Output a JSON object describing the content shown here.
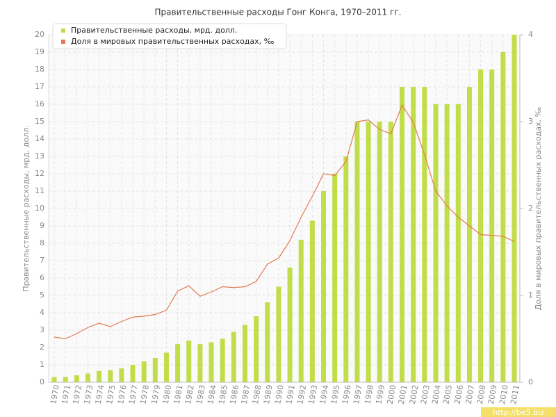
{
  "chart_data": {
    "type": "bar_line",
    "title": "Правительственные расходы Гонг Конга, 1970–2011 гг.",
    "y_label": "Правительственные расходы, мрд. долл.",
    "y2_label": "Доля в мировых правительственных расходах, ‰",
    "watermark": "http://be5.biz",
    "categories": [
      "1970",
      "1971",
      "1972",
      "1973",
      "1974",
      "1975",
      "1976",
      "1977",
      "1978",
      "1979",
      "1980",
      "1981",
      "1982",
      "1983",
      "1984",
      "1985",
      "1986",
      "1987",
      "1988",
      "1989",
      "1990",
      "1991",
      "1992",
      "1993",
      "1994",
      "1995",
      "1996",
      "1997",
      "1998",
      "1999",
      "2000",
      "2001",
      "2002",
      "2003",
      "2004",
      "2005",
      "2006",
      "2007",
      "2008",
      "2009",
      "2010",
      "2011"
    ],
    "series": [
      {
        "name": "Правительственные расходы, мрд. долл.",
        "color": "#c2dd4a",
        "kind": "bar",
        "values": [
          0.3,
          0.3,
          0.4,
          0.5,
          0.65,
          0.7,
          0.8,
          1.0,
          1.2,
          1.4,
          1.7,
          2.2,
          2.4,
          2.2,
          2.3,
          2.5,
          2.9,
          3.3,
          3.8,
          4.6,
          5.5,
          6.6,
          8.2,
          9.3,
          11,
          12,
          13,
          15,
          15,
          15,
          15,
          17,
          17,
          17,
          16,
          16,
          16,
          17,
          18,
          18,
          19,
          20
        ]
      },
      {
        "name": "Доля в мировых правительственных расходах, ‰",
        "color": "#e07a50",
        "kind": "line",
        "axis": "y2",
        "values": [
          0.52,
          0.5,
          0.56,
          0.63,
          0.68,
          0.64,
          0.7,
          0.75,
          0.76,
          0.78,
          0.83,
          1.05,
          1.11,
          0.99,
          1.04,
          1.1,
          1.09,
          1.1,
          1.16,
          1.36,
          1.43,
          1.63,
          1.9,
          2.14,
          2.4,
          2.38,
          2.54,
          3.0,
          3.02,
          2.91,
          2.86,
          3.19,
          2.99,
          2.62,
          2.2,
          2.03,
          1.9,
          1.8,
          1.7,
          1.69,
          1.68,
          1.62
        ]
      }
    ],
    "ylim": [
      0,
      20
    ],
    "yticks": [
      0,
      1,
      2,
      3,
      4,
      5,
      6,
      7,
      8,
      9,
      10,
      11,
      12,
      13,
      14,
      15,
      16,
      17,
      18,
      19,
      20
    ],
    "y2lim": [
      0,
      4
    ],
    "y2ticks": [
      0,
      1,
      2,
      3,
      4
    ],
    "grid": true,
    "legend": "top-left"
  }
}
